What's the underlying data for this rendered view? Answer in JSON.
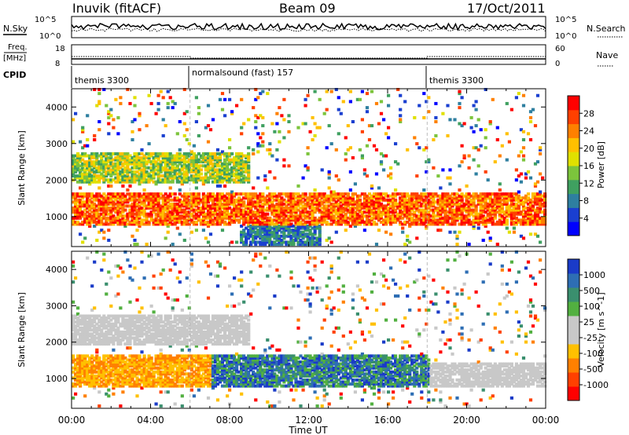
{
  "header": {
    "title": "Inuvik (fitACF)",
    "beam": "Beam 09",
    "date": "17/Oct/2011"
  },
  "noise_panel": {
    "left_label": "N.Sky",
    "right_label": "N.Search",
    "ticks_left": [
      "10^5",
      "10^0"
    ],
    "ticks_right": [
      "10^5",
      "10^0"
    ]
  },
  "freq_panel": {
    "left_label_1": "Freq.",
    "left_label_2": "[MHz]",
    "right_label": "Nave",
    "ticks_left": [
      "18",
      "8"
    ],
    "ticks_right": [
      "60",
      "0"
    ]
  },
  "cpid": {
    "label": "CPID",
    "segments": [
      {
        "name": "themis 3300",
        "start_hour": 0
      },
      {
        "name": "normalsound (fast) 157",
        "start_hour": 6
      },
      {
        "name": "themis 3300",
        "start_hour": 18
      }
    ]
  },
  "colors": {
    "power_scale": [
      "#0000ff",
      "#1a3fd0",
      "#2e7fa0",
      "#3fa060",
      "#7cc43c",
      "#e0e000",
      "#ffc000",
      "#ff8000",
      "#ff4000",
      "#ff0000"
    ],
    "velocity_scale": [
      "#1a3bc8",
      "#2e6eb4",
      "#3a8f6e",
      "#52b040",
      "#c8c8c8",
      "#c8c8c8",
      "#ffc000",
      "#ff8000",
      "#ff4000",
      "#ff0000"
    ]
  },
  "chart_data": [
    {
      "type": "heatmap",
      "panel": "power",
      "ylabel": "Slant Range [km]",
      "ylim": [
        180,
        4500
      ],
      "yticks": [
        1000,
        2000,
        3000,
        4000
      ],
      "xlim": [
        0,
        24
      ],
      "colorbar_label": "Power [dB]",
      "colorbar_ticks": [
        "4",
        "8",
        "12",
        "16",
        "20",
        "24",
        "28"
      ],
      "bands": [
        {
          "range_km": [
            700,
            1600
          ],
          "hours": [
            0,
            24
          ],
          "level": "high"
        },
        {
          "range_km": [
            1900,
            2700
          ],
          "hours": [
            0,
            9
          ],
          "level": "mid"
        },
        {
          "range_km": [
            200,
            700
          ],
          "hours": [
            8.5,
            12.5
          ],
          "level": "low"
        }
      ]
    },
    {
      "type": "heatmap",
      "panel": "velocity",
      "ylabel": "Slant Range [km]",
      "ylim": [
        180,
        4500
      ],
      "yticks": [
        1000,
        2000,
        3000,
        4000
      ],
      "xlim": [
        0,
        24
      ],
      "xlabel": "Time UT",
      "xticks": [
        "00:00",
        "04:00",
        "08:00",
        "12:00",
        "16:00",
        "20:00",
        "00:00"
      ],
      "colorbar_label": "Velocity [m s^-1]",
      "colorbar_ticks": [
        "1000",
        "500",
        "100",
        "25",
        "-25",
        "-100",
        "-500",
        "-1000"
      ],
      "bands": [
        {
          "range_km": [
            700,
            1600
          ],
          "hours": [
            0,
            7
          ],
          "level": "negative"
        },
        {
          "range_km": [
            700,
            1600
          ],
          "hours": [
            7,
            18
          ],
          "level": "positive"
        },
        {
          "range_km": [
            700,
            1400
          ],
          "hours": [
            18,
            24
          ],
          "level": "ground"
        },
        {
          "range_km": [
            1900,
            2700
          ],
          "hours": [
            0,
            9
          ],
          "level": "ground"
        }
      ]
    }
  ]
}
